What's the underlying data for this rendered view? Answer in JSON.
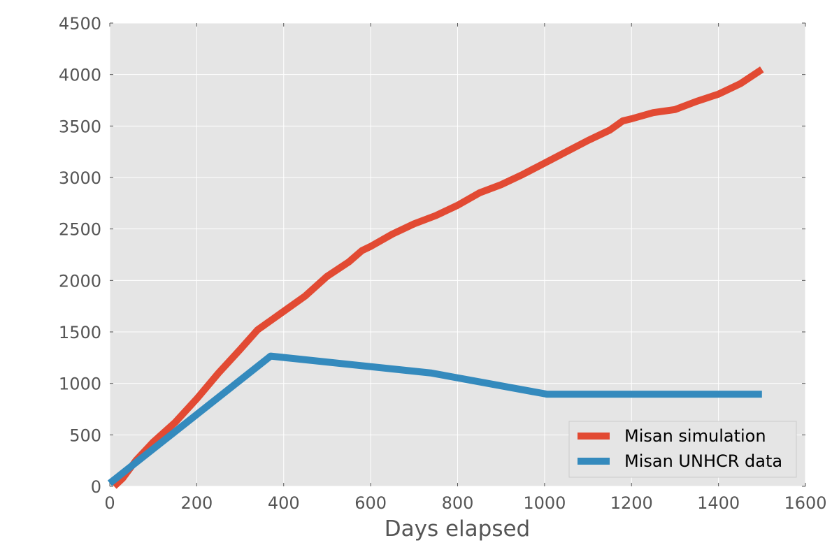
{
  "chart_data": {
    "type": "line",
    "title": "",
    "xlabel": "Days elapsed",
    "ylabel": "",
    "xlim": [
      0,
      1600
    ],
    "ylim": [
      0,
      4500
    ],
    "xticks": [
      0,
      200,
      400,
      600,
      800,
      1000,
      1200,
      1400,
      1600
    ],
    "yticks": [
      0,
      500,
      1000,
      1500,
      2000,
      2500,
      3000,
      3500,
      4000,
      4500
    ],
    "grid": true,
    "legend_position": "lower right",
    "series": [
      {
        "name": "Misan simulation",
        "color": "#E24A33",
        "x": [
          10,
          30,
          60,
          100,
          150,
          200,
          250,
          300,
          340,
          370,
          400,
          450,
          500,
          550,
          580,
          600,
          650,
          700,
          750,
          800,
          850,
          900,
          950,
          1000,
          1050,
          1100,
          1150,
          1180,
          1200,
          1250,
          1300,
          1350,
          1400,
          1450,
          1500
        ],
        "y": [
          0,
          80,
          250,
          430,
          620,
          850,
          1100,
          1330,
          1520,
          1610,
          1700,
          1850,
          2040,
          2180,
          2290,
          2330,
          2450,
          2550,
          2630,
          2730,
          2850,
          2930,
          3030,
          3140,
          3250,
          3360,
          3460,
          3550,
          3570,
          3630,
          3660,
          3740,
          3810,
          3910,
          4050
        ]
      },
      {
        "name": "Misan UNHCR data",
        "color": "#348ABD",
        "x": [
          0,
          370,
          740,
          1005,
          1500
        ],
        "y": [
          30,
          1265,
          1100,
          895,
          895
        ]
      }
    ]
  }
}
